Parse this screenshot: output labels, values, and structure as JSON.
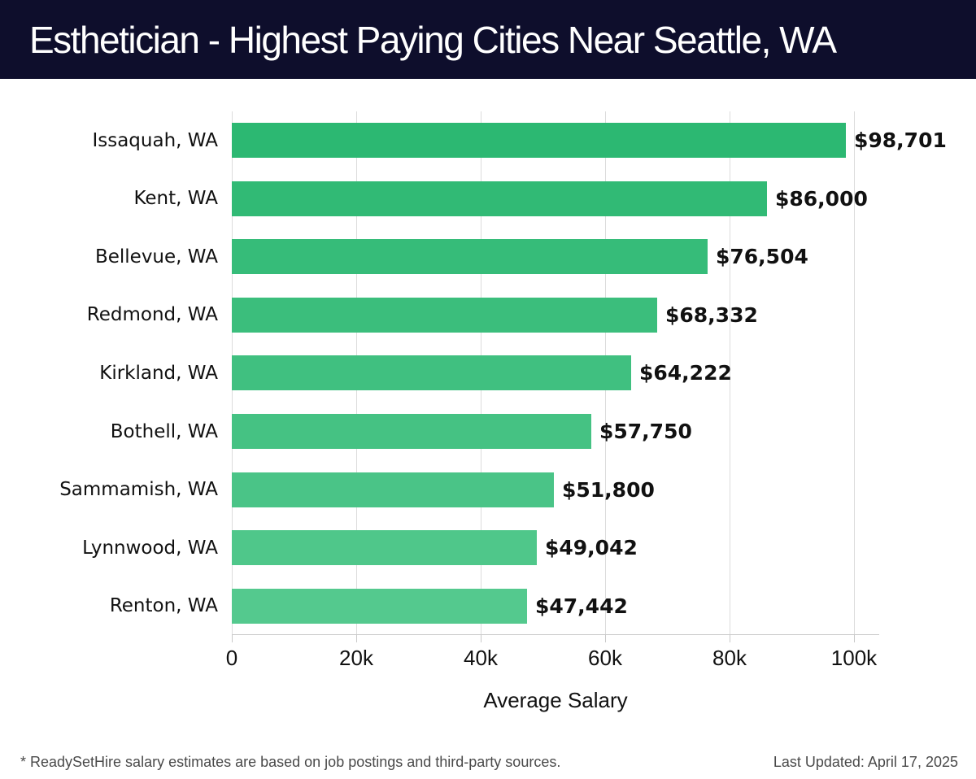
{
  "header": {
    "title": "Esthetician - Highest Paying Cities Near Seattle, WA"
  },
  "chart_data": {
    "type": "bar",
    "orientation": "horizontal",
    "title": "Esthetician - Highest Paying Cities Near Seattle, WA",
    "categories": [
      "Issaquah, WA",
      "Kent, WA",
      "Bellevue, WA",
      "Redmond, WA",
      "Kirkland, WA",
      "Bothell, WA",
      "Sammamish, WA",
      "Lynnwood, WA",
      "Renton, WA"
    ],
    "values": [
      98701,
      86000,
      76504,
      68332,
      64222,
      57750,
      51800,
      49042,
      47442
    ],
    "value_labels": [
      "$98,701",
      "$86,000",
      "$76,504",
      "$68,332",
      "$64,222",
      "$57,750",
      "$51,800",
      "$49,042",
      "$47,442"
    ],
    "bar_colors": [
      "#2cb872",
      "#31ba75",
      "#36bc79",
      "#3bbe7c",
      "#40c080",
      "#45c283",
      "#4ac487",
      "#4fc78a",
      "#54c98e"
    ],
    "xlabel": "Average Salary",
    "ylabel": "",
    "xlim": [
      0,
      104000
    ],
    "x_ticks": [
      0,
      20000,
      40000,
      60000,
      80000,
      100000
    ],
    "x_tick_labels": [
      "0",
      "20k",
      "40k",
      "60k",
      "80k",
      "100k"
    ],
    "grid": "vertical",
    "legend": "none",
    "colors": {
      "header_background": "#0e0e2c",
      "header_text": "#ffffff",
      "gridline": "#dcdcdc",
      "axis": "#c9c9c9",
      "label_text": "#111111",
      "footer_text": "#4a4a4a",
      "background": "#ffffff"
    }
  },
  "footer": {
    "note": "* ReadySetHire salary estimates are based on job postings and third-party sources.",
    "last_updated": "Last Updated: April 17, 2025"
  }
}
